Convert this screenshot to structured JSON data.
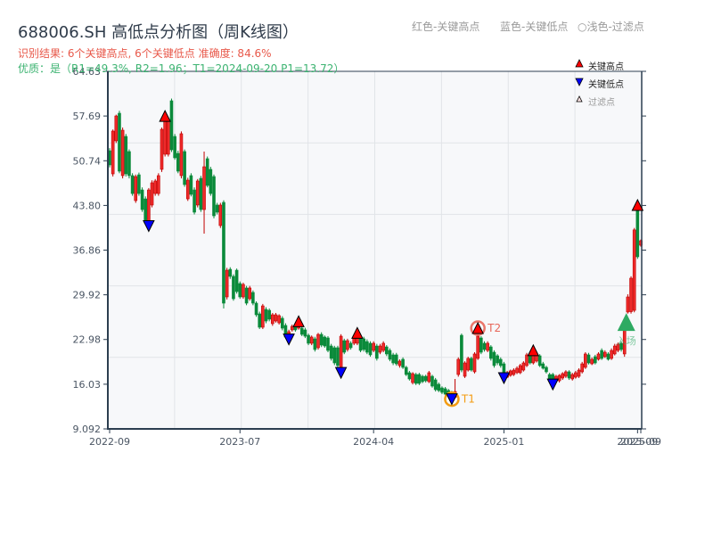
{
  "header": {
    "title": "688006.SH 高低点分析图（周K线图）",
    "result_line": "识别结果: 6个关键高点, 6个关键低点  准确度: 84.6%",
    "quality_line": "优质：是（R1=49.3%, R2=1.96；T1=2024-09-20 P1=13.72）",
    "legend": [
      "红色-关键高点",
      "蓝色-关键低点",
      "○浅色-过滤点"
    ]
  },
  "colors": {
    "up": "#ee2a2a",
    "up_edge": "#c00000",
    "down": "#0a8a3a",
    "key_high": "#ff0000",
    "key_low": "#0000ff",
    "t1": "#f39c12",
    "t2": "#e8675a",
    "entry": "#2eaa62",
    "axis": "#2c3e50",
    "grid": "#e1e4e8",
    "plot_bg": "#f7f8fa"
  },
  "chart_data": {
    "type": "candlestick",
    "title": "688006.SH 高低点分析图（周K线图）",
    "xlabel": "",
    "ylabel": "",
    "ylim": [
      9.092,
      64.63
    ],
    "grid": true,
    "legend_position": "upper right",
    "legend": [
      {
        "label": "关键高点",
        "marker": "red-up-triangle"
      },
      {
        "label": "关键低点",
        "marker": "blue-down-triangle"
      },
      {
        "label": "过滤点",
        "marker": "light-up-triangle"
      }
    ],
    "y_ticks": [
      "64.63",
      "57.69",
      "50.74",
      "43.80",
      "36.86",
      "29.92",
      "22.98",
      "16.03",
      "9.092"
    ],
    "x_ticks": [
      {
        "label": "2022-09",
        "i": 0
      },
      {
        "label": "2023-07",
        "i": 40
      },
      {
        "label": "2024-04",
        "i": 81
      },
      {
        "label": "2025-01",
        "i": 121
      },
      {
        "label": "2025-09",
        "i": 162
      },
      {
        "label": "2025-09",
        "i": 163
      }
    ],
    "ohlc_fields": [
      "open",
      "high",
      "low",
      "close"
    ],
    "ohlc": [
      [
        52.3,
        52.7,
        49.7,
        50.09
      ],
      [
        48.7,
        55.6,
        48.3,
        55.35
      ],
      [
        53.83,
        57.9,
        53.5,
        57.7
      ],
      [
        58.12,
        58.5,
        48.8,
        49.12
      ],
      [
        48.43,
        55.9,
        48.0,
        55.49
      ],
      [
        54.52,
        54.9,
        48.3,
        48.7
      ],
      [
        52.17,
        52.5,
        48.0,
        48.43
      ],
      [
        48.43,
        48.8,
        45.3,
        45.65
      ],
      [
        44.55,
        48.6,
        44.2,
        48.29
      ],
      [
        48.56,
        48.9,
        45.3,
        45.65
      ],
      [
        46.21,
        46.6,
        42.8,
        43.16
      ],
      [
        44.82,
        45.2,
        40.8,
        41.09
      ],
      [
        41.09,
        46.5,
        40.6,
        46.21
      ],
      [
        43.86,
        47.7,
        43.5,
        47.32
      ],
      [
        45.65,
        47.9,
        45.3,
        47.6
      ],
      [
        45.65,
        48.8,
        45.3,
        48.43
      ],
      [
        49.4,
        55.9,
        49.0,
        55.63
      ],
      [
        51.75,
        57.69,
        51.4,
        57.29
      ],
      [
        51.75,
        57.4,
        51.4,
        57.0
      ],
      [
        60.06,
        60.4,
        52.1,
        52.44
      ],
      [
        54.52,
        54.9,
        50.9,
        51.2
      ],
      [
        51.89,
        52.3,
        48.8,
        49.12
      ],
      [
        48.43,
        55.3,
        48.0,
        54.94
      ],
      [
        52.17,
        52.5,
        46.7,
        47.04
      ],
      [
        44.82,
        48.1,
        44.5,
        47.73
      ],
      [
        48.43,
        48.8,
        45.2,
        45.52
      ],
      [
        46.21,
        46.6,
        42.4,
        42.75
      ],
      [
        43.86,
        47.9,
        43.5,
        47.6
      ],
      [
        48.01,
        48.4,
        42.8,
        43.16
      ],
      [
        43.16,
        52.17,
        39.42,
        49.81
      ],
      [
        51.06,
        51.4,
        46.6,
        46.9
      ],
      [
        49.4,
        49.8,
        45.3,
        45.65
      ],
      [
        48.29,
        48.6,
        41.8,
        42.19
      ],
      [
        43.86,
        44.2,
        42.4,
        42.75
      ],
      [
        40.67,
        44.2,
        40.3,
        43.86
      ],
      [
        44.27,
        44.6,
        27.8,
        28.62
      ],
      [
        29.59,
        34.1,
        29.2,
        33.74
      ],
      [
        33.88,
        34.2,
        32.4,
        32.78
      ],
      [
        32.78,
        33.1,
        29.0,
        29.31
      ],
      [
        33.74,
        34.0,
        30.1,
        30.42
      ],
      [
        31.67,
        32.0,
        29.3,
        29.59
      ],
      [
        29.59,
        31.8,
        29.3,
        31.53
      ],
      [
        30.98,
        31.3,
        28.3,
        28.62
      ],
      [
        29.31,
        31.3,
        29.0,
        30.98
      ],
      [
        30.29,
        30.6,
        28.3,
        28.62
      ],
      [
        28.62,
        28.9,
        26.5,
        26.82
      ],
      [
        26.96,
        27.3,
        24.6,
        24.88
      ],
      [
        24.88,
        28.5,
        24.6,
        28.2
      ],
      [
        27.65,
        28.0,
        25.5,
        25.85
      ],
      [
        27.51,
        27.8,
        25.8,
        26.13
      ],
      [
        25.44,
        27.1,
        25.1,
        26.82
      ],
      [
        25.85,
        27.1,
        25.6,
        26.82
      ],
      [
        25.57,
        26.9,
        25.3,
        26.68
      ],
      [
        26.27,
        26.6,
        24.4,
        24.74
      ],
      [
        25.16,
        25.5,
        23.1,
        23.36
      ],
      [
        23.36,
        24.5,
        23.0,
        24.19
      ],
      [
        24.47,
        25.3,
        24.2,
        25.02
      ],
      [
        25.02,
        25.3,
        24.2,
        24.47
      ],
      [
        24.74,
        25.8,
        24.5,
        25.16
      ],
      [
        24.74,
        25.0,
        23.5,
        23.77
      ],
      [
        24.47,
        24.8,
        23.2,
        23.49
      ],
      [
        23.63,
        23.9,
        22.1,
        22.39
      ],
      [
        22.39,
        23.6,
        22.1,
        23.36
      ],
      [
        23.08,
        23.4,
        21.1,
        21.42
      ],
      [
        21.7,
        24.0,
        21.4,
        23.77
      ],
      [
        23.77,
        24.1,
        21.8,
        22.11
      ],
      [
        23.36,
        23.6,
        21.7,
        21.97
      ],
      [
        23.22,
        23.5,
        21.0,
        21.28
      ],
      [
        21.97,
        22.3,
        19.7,
        20.04
      ],
      [
        21.7,
        22.0,
        19.0,
        19.34
      ],
      [
        21.7,
        22.0,
        18.6,
        18.93
      ],
      [
        18.51,
        23.8,
        17.8,
        23.49
      ],
      [
        22.8,
        23.1,
        20.7,
        21.0
      ],
      [
        21.42,
        23.1,
        21.1,
        22.8
      ],
      [
        22.39,
        22.7,
        21.4,
        21.7
      ],
      [
        22.39,
        23.6,
        22.1,
        23.36
      ],
      [
        22.39,
        24.0,
        22.1,
        23.77
      ],
      [
        23.36,
        23.6,
        21.0,
        21.28
      ],
      [
        23.08,
        23.4,
        21.1,
        21.42
      ],
      [
        22.66,
        23.0,
        20.7,
        21.0
      ],
      [
        22.39,
        22.7,
        20.3,
        20.59
      ],
      [
        21.28,
        22.7,
        21.0,
        22.39
      ],
      [
        21.97,
        22.3,
        19.7,
        20.04
      ],
      [
        21.0,
        22.3,
        20.7,
        21.97
      ],
      [
        21.28,
        22.7,
        21.0,
        22.39
      ],
      [
        21.83,
        22.1,
        20.4,
        20.73
      ],
      [
        21.28,
        21.6,
        19.6,
        19.9
      ],
      [
        20.59,
        20.9,
        19.0,
        19.34
      ],
      [
        20.59,
        20.9,
        18.9,
        19.2
      ],
      [
        18.93,
        19.9,
        18.6,
        19.62
      ],
      [
        19.9,
        20.2,
        18.4,
        18.65
      ],
      [
        18.65,
        18.9,
        17.3,
        17.54
      ],
      [
        17.82,
        18.1,
        16.6,
        16.85
      ],
      [
        16.29,
        17.9,
        16.0,
        17.68
      ],
      [
        17.54,
        17.8,
        15.9,
        16.16
      ],
      [
        17.54,
        17.8,
        15.9,
        16.16
      ],
      [
        17.26,
        17.5,
        16.2,
        16.43
      ],
      [
        17.26,
        17.5,
        16.3,
        16.57
      ],
      [
        16.43,
        18.1,
        16.2,
        17.82
      ],
      [
        17.26,
        17.5,
        15.5,
        15.74
      ],
      [
        16.71,
        17.0,
        14.9,
        15.19
      ],
      [
        16.02,
        16.3,
        14.8,
        15.05
      ],
      [
        15.46,
        15.7,
        14.5,
        14.77
      ],
      [
        15.33,
        15.6,
        14.2,
        14.49
      ],
      [
        15.05,
        15.3,
        13.9,
        14.22
      ],
      [
        14.77,
        15.0,
        13.72,
        13.94
      ],
      [
        14.0,
        16.85,
        13.8,
        14.9
      ],
      [
        17.54,
        20.2,
        17.2,
        19.9
      ],
      [
        23.63,
        23.9,
        17.9,
        18.23
      ],
      [
        17.26,
        19.6,
        17.0,
        19.34
      ],
      [
        18.23,
        20.3,
        18.0,
        20.04
      ],
      [
        20.04,
        20.3,
        18.0,
        18.23
      ],
      [
        17.96,
        21.0,
        17.7,
        20.73
      ],
      [
        20.04,
        24.74,
        19.8,
        23.49
      ],
      [
        23.22,
        23.5,
        20.7,
        21.0
      ],
      [
        22.39,
        22.7,
        21.1,
        21.42
      ],
      [
        21.28,
        22.7,
        21.0,
        22.39
      ],
      [
        21.83,
        22.1,
        19.7,
        20.04
      ],
      [
        21.0,
        21.3,
        18.6,
        18.93
      ],
      [
        20.45,
        20.7,
        19.0,
        19.34
      ],
      [
        19.9,
        20.2,
        18.6,
        18.93
      ],
      [
        19.2,
        19.5,
        16.99,
        17.26
      ],
      [
        17.12,
        18.1,
        17.0,
        17.82
      ],
      [
        17.4,
        18.3,
        17.2,
        18.1
      ],
      [
        17.54,
        18.5,
        17.3,
        18.23
      ],
      [
        17.82,
        18.8,
        17.6,
        18.51
      ],
      [
        17.82,
        19.2,
        17.6,
        18.93
      ],
      [
        18.23,
        19.6,
        18.0,
        19.34
      ],
      [
        18.93,
        20.9,
        18.7,
        20.59
      ],
      [
        20.59,
        20.9,
        19.1,
        19.34
      ],
      [
        19.34,
        21.3,
        19.1,
        20.73
      ],
      [
        19.62,
        20.9,
        19.4,
        20.59
      ],
      [
        20.45,
        20.7,
        18.7,
        18.93
      ],
      [
        19.2,
        19.5,
        18.3,
        18.51
      ],
      [
        18.65,
        18.9,
        17.7,
        17.96
      ],
      [
        17.54,
        17.8,
        16.3,
        16.57
      ],
      [
        17.54,
        17.8,
        16.0,
        16.57
      ],
      [
        16.85,
        17.5,
        16.6,
        17.26
      ],
      [
        16.57,
        17.6,
        16.3,
        17.4
      ],
      [
        16.99,
        17.9,
        16.7,
        17.68
      ],
      [
        17.26,
        18.2,
        17.0,
        17.96
      ],
      [
        17.96,
        18.2,
        16.7,
        16.99
      ],
      [
        16.85,
        17.8,
        16.6,
        17.54
      ],
      [
        17.12,
        18.1,
        16.9,
        17.82
      ],
      [
        17.26,
        18.5,
        17.0,
        18.23
      ],
      [
        17.96,
        19.5,
        17.7,
        19.2
      ],
      [
        18.65,
        21.0,
        18.4,
        20.73
      ],
      [
        20.59,
        20.9,
        19.1,
        19.34
      ],
      [
        19.2,
        20.2,
        19.0,
        19.9
      ],
      [
        20.31,
        20.6,
        19.1,
        19.34
      ],
      [
        19.9,
        21.0,
        19.7,
        20.73
      ],
      [
        21.28,
        21.6,
        19.8,
        20.04
      ],
      [
        20.31,
        21.3,
        20.1,
        21.0
      ],
      [
        20.73,
        21.0,
        19.7,
        19.9
      ],
      [
        20.04,
        21.6,
        19.8,
        21.28
      ],
      [
        20.73,
        22.3,
        20.5,
        21.97
      ],
      [
        21.28,
        22.5,
        21.0,
        22.25
      ],
      [
        22.39,
        22.7,
        21.1,
        21.42
      ],
      [
        20.73,
        24.6,
        20.3,
        24.47
      ],
      [
        27.24,
        30.0,
        27.0,
        29.59
      ],
      [
        27.3,
        32.8,
        27.0,
        32.5
      ],
      [
        27.5,
        40.3,
        27.2,
        40.0
      ],
      [
        43.6,
        43.86,
        35.5,
        35.82
      ],
      [
        37.62,
        38.5,
        37.4,
        38.32
      ]
    ],
    "key_highs": [
      {
        "i": 17,
        "price": 57.69
      },
      {
        "i": 58,
        "price": 25.8
      },
      {
        "i": 76,
        "price": 24.0
      },
      {
        "i": 113,
        "price": 24.74,
        "label": "T2"
      },
      {
        "i": 130,
        "price": 21.3
      },
      {
        "i": 162,
        "price": 43.86
      }
    ],
    "key_lows": [
      {
        "i": 12,
        "price": 40.6
      },
      {
        "i": 55,
        "price": 23.0
      },
      {
        "i": 71,
        "price": 17.8
      },
      {
        "i": 105,
        "price": 13.72,
        "label": "T1"
      },
      {
        "i": 121,
        "price": 16.99
      },
      {
        "i": 136,
        "price": 16.0
      }
    ],
    "entry": {
      "i": 158,
      "price": 25.7,
      "label": "入场"
    }
  }
}
